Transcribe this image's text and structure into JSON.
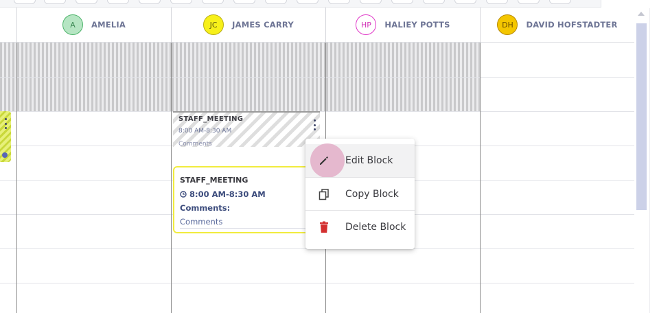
{
  "columns": [
    {
      "initials": "A",
      "name": "AMELIA",
      "avatar_bg": "#b6e5c3",
      "avatar_border": "#4eb46b",
      "avatar_text": "#3e8a55"
    },
    {
      "initials": "JC",
      "name": "JAMES CARRY",
      "avatar_bg": "#f7f01a",
      "avatar_border": "#b8ad15",
      "avatar_text": "#5d5a10"
    },
    {
      "initials": "HP",
      "name": "HALIEY POTTS",
      "avatar_bg": "#ffffff",
      "avatar_border": "#e038c8",
      "avatar_text": "#d12fb6"
    },
    {
      "initials": "DH",
      "name": "DAVID HOFSTADTER",
      "avatar_bg": "#f4c600",
      "avatar_border": "#b88a00",
      "avatar_text": "#6a4d00"
    }
  ],
  "blocks": {
    "striped": {
      "title": "STAFF_MEETING",
      "time": "8:00 AM-8:30 AM",
      "comments": "Comments"
    },
    "card": {
      "title": "STAFF_MEETING",
      "time": "8:00 AM-8:30 AM",
      "comments_label": "Comments:",
      "comments": "Comments"
    }
  },
  "context_menu": {
    "items": [
      {
        "label": "Edit Block",
        "icon": "pencil-icon",
        "color": "#3a3a3f"
      },
      {
        "label": "Copy Block",
        "icon": "copy-icon",
        "color": "#3a3a3f"
      },
      {
        "label": "Delete Block",
        "icon": "trash-icon",
        "color": "#d32f2f"
      }
    ]
  },
  "colors": {
    "card_border": "#f1ec3e",
    "accent_text": "#3b4b7c",
    "scrollbar_thumb": "#ccd1e8"
  }
}
